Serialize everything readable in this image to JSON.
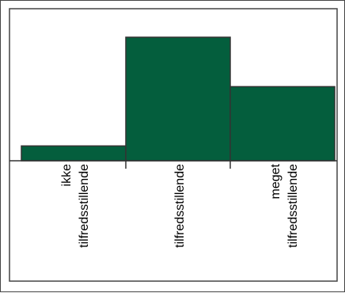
{
  "chart_data": {
    "type": "bar",
    "title": "",
    "xlabel": "",
    "ylabel": "",
    "categories": [
      [
        "ikke",
        "tilfredsstillende"
      ],
      [
        "tilfredsstillende"
      ],
      [
        "meget",
        "tilfredsstillende"
      ]
    ],
    "values": [
      12,
      100,
      60
    ],
    "ylim": [
      0,
      100
    ],
    "grid": false,
    "legend": "none",
    "colors": {
      "bar_fill": "#045e3d",
      "bar_edge": "#333333",
      "axis": "#333333",
      "frame": "#444444"
    }
  }
}
